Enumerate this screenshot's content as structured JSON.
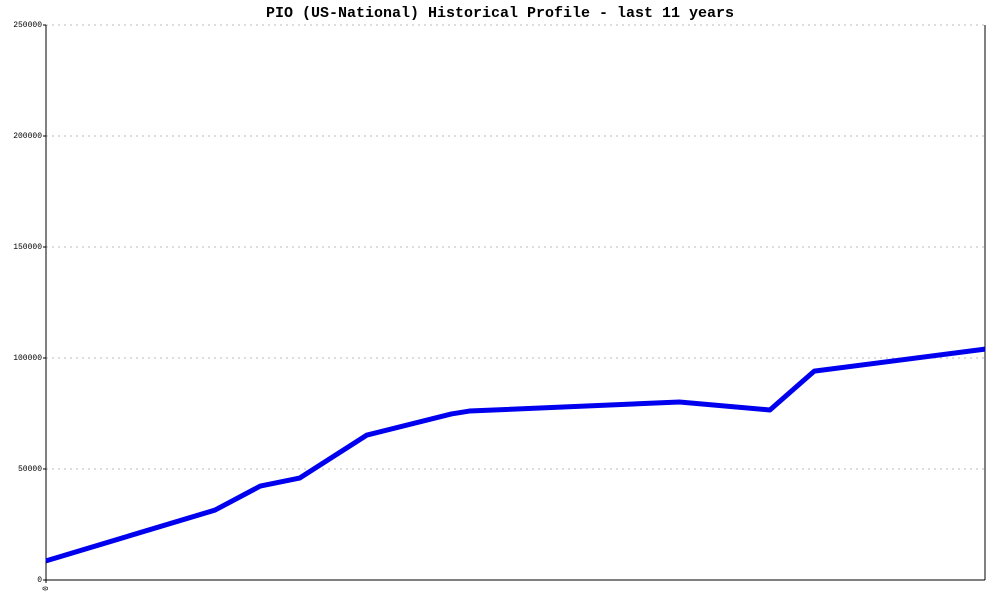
{
  "chart_data": {
    "type": "line",
    "title": "PIO (US-National) Historical Profile - last 11 years",
    "x": [
      0,
      1.98,
      2.51,
      2.97,
      3.76,
      4.75,
      4.96,
      7.42,
      8.48,
      9.0,
      11
    ],
    "series": [
      {
        "color": "#0000ee",
        "values": [
          8600,
          31500,
          42300,
          45900,
          65300,
          74800,
          76100,
          80200,
          76600,
          94100,
          104000
        ]
      }
    ],
    "xlim": [
      0,
      11
    ],
    "xticks": [
      0
    ],
    "ylim": [
      0,
      250000
    ],
    "yticks": [
      0,
      50000,
      100000,
      150000,
      200000,
      250000
    ],
    "grid": true
  }
}
